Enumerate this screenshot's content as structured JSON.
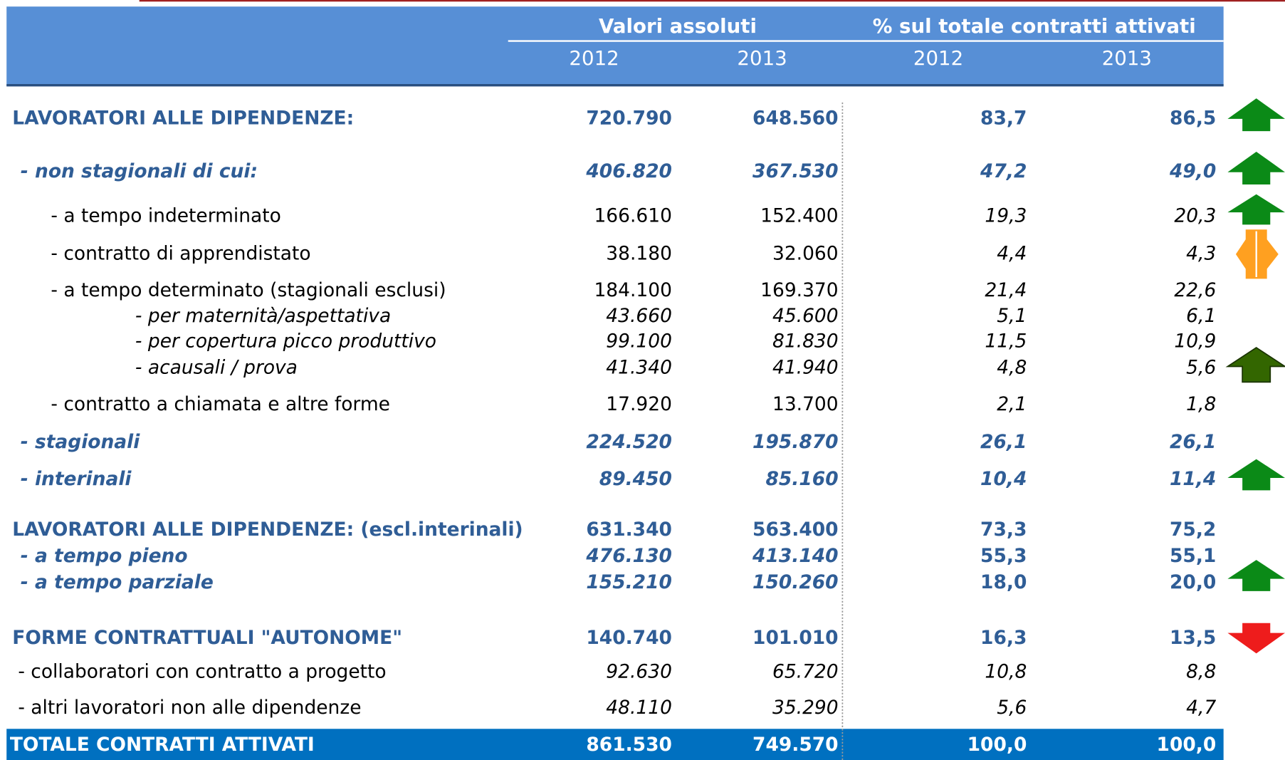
{
  "header": {
    "groups": [
      "Valori assoluti",
      "% sul totale contratti attivati"
    ],
    "years": [
      "2012",
      "2013",
      "2012",
      "2013"
    ]
  },
  "table": {
    "rows": [
      [
        "LAVORATORI ALLE DIPENDENZE:",
        "720.790",
        "648.560",
        "83,7",
        "86,5"
      ],
      [
        "- non stagionali di cui:",
        "406.820",
        "367.530",
        "47,2",
        "49,0"
      ],
      [
        "- a tempo indeterminato",
        "166.610",
        "152.400",
        "19,3",
        "20,3"
      ],
      [
        "- contratto di apprendistato",
        "38.180",
        "32.060",
        "4,4",
        "4,3"
      ],
      [
        "- a tempo determinato (stagionali esclusi)",
        "184.100",
        "169.370",
        "21,4",
        "22,6"
      ],
      [
        "- per maternità/aspettativa",
        "43.660",
        "45.600",
        "5,1",
        "6,1"
      ],
      [
        "- per copertura picco produttivo",
        "99.100",
        "81.830",
        "11,5",
        "10,9"
      ],
      [
        "- acausali / prova",
        "41.340",
        "41.940",
        "4,8",
        "5,6"
      ],
      [
        "- contratto a chiamata e altre forme",
        "17.920",
        "13.700",
        "2,1",
        "1,8"
      ],
      [
        "- stagionali",
        "224.520",
        "195.870",
        "26,1",
        "26,1"
      ],
      [
        "- interinali",
        "89.450",
        "85.160",
        "10,4",
        "11,4"
      ],
      [
        "LAVORATORI ALLE DIPENDENZE: (escl.interinali)",
        "631.340",
        "563.400",
        "73,3",
        "75,2"
      ],
      [
        "- a tempo pieno",
        "476.130",
        "413.140",
        "55,3",
        "55,1"
      ],
      [
        "- a tempo parziale",
        "155.210",
        "150.260",
        "18,0",
        "20,0"
      ],
      [
        "FORME CONTRATTUALI \"AUTONOME\"",
        "140.740",
        "101.010",
        "16,3",
        "13,5"
      ],
      [
        "- collaboratori con contratto a progetto",
        "92.630",
        "65.720",
        "10,8",
        "8,8"
      ],
      [
        "- altri lavoratori non alle dipendenze",
        "48.110",
        "35.290",
        "5,6",
        "4,7"
      ],
      [
        "TOTALE CONTRATTI ATTIVATI",
        "861.530",
        "749.570",
        "100,0",
        "100,0"
      ]
    ]
  }
}
